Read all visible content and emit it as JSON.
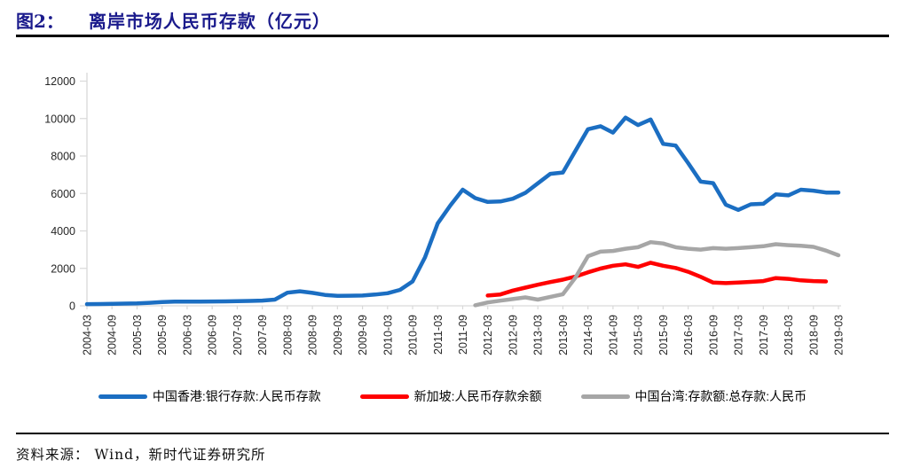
{
  "header": {
    "figure_label": "图2：",
    "title": "离岸市场人民币存款（亿元）"
  },
  "footer": {
    "source_label": "资料来源：",
    "source_value": "Wind，新时代证券研究所"
  },
  "colors": {
    "title_navy": "#1A1A8C",
    "rule_black": "#000000",
    "axis_gray": "#D9D9D9",
    "tick_text": "#262626",
    "hk_blue": "#1B6EC2",
    "sg_red": "#FF0000",
    "tw_gray": "#A6A6A6"
  },
  "chart_data": {
    "type": "line",
    "title": "离岸市场人民币存款（亿元）",
    "xlabel": "",
    "ylabel": "",
    "ylim": [
      0,
      12000
    ],
    "yticks": [
      0,
      2000,
      4000,
      6000,
      8000,
      10000,
      12000
    ],
    "x_start": "2004-03",
    "x_end": "2019-03",
    "x_frequency": "monthly, plotted quarterly estimates",
    "grid": false,
    "legend_position": "bottom",
    "xtick_labels": [
      "2004-03",
      "2004-09",
      "2005-03",
      "2005-09",
      "2006-03",
      "2006-09",
      "2007-03",
      "2007-09",
      "2008-03",
      "2008-09",
      "2009-03",
      "2009-09",
      "2010-03",
      "2010-09",
      "2011-03",
      "2011-09",
      "2012-03",
      "2012-09",
      "2013-03",
      "2013-09",
      "2014-03",
      "2014-09",
      "2015-03",
      "2015-09",
      "2016-03",
      "2016-09",
      "2017-03",
      "2017-09",
      "2018-03",
      "2018-09",
      "2019-03"
    ],
    "series": [
      {
        "name": "中国香港:银行存款:人民币存款",
        "color": "#1B6EC2",
        "start": "2004-03",
        "step_months": 3,
        "values": [
          90,
          95,
          105,
          120,
          130,
          160,
          200,
          225,
          225,
          225,
          230,
          235,
          250,
          260,
          280,
          330,
          700,
          775,
          690,
          580,
          530,
          540,
          550,
          600,
          670,
          850,
          1300,
          2600,
          4400,
          5350,
          6200,
          5750,
          5550,
          5570,
          5720,
          6030,
          6540,
          7050,
          7120,
          8270,
          9430,
          9590,
          9250,
          10050,
          9650,
          9950,
          8650,
          8560,
          7620,
          6630,
          6550,
          5400,
          5120,
          5420,
          5450,
          5950,
          5900,
          6200,
          6150,
          6050,
          6050
        ]
      },
      {
        "name": "新加坡:人民币存款余额",
        "color": "#FF0000",
        "start": "2012-03",
        "step_months": 3,
        "values": [
          550,
          605,
          815,
          970,
          1125,
          1270,
          1395,
          1560,
          1790,
          1990,
          2140,
          2215,
          2080,
          2300,
          2140,
          2020,
          1820,
          1550,
          1240,
          1210,
          1240,
          1280,
          1320,
          1480,
          1440,
          1360,
          1320,
          1300
        ]
      },
      {
        "name": "中国台湾:存款额:总存款:人民币",
        "color": "#A6A6A6",
        "start": "2011-12",
        "step_months": 3,
        "values": [
          30,
          180,
          275,
          360,
          450,
          330,
          480,
          620,
          1500,
          2650,
          2890,
          2930,
          3050,
          3130,
          3400,
          3330,
          3130,
          3050,
          3000,
          3080,
          3050,
          3080,
          3130,
          3180,
          3290,
          3240,
          3210,
          3150,
          2950,
          2700
        ]
      }
    ]
  }
}
